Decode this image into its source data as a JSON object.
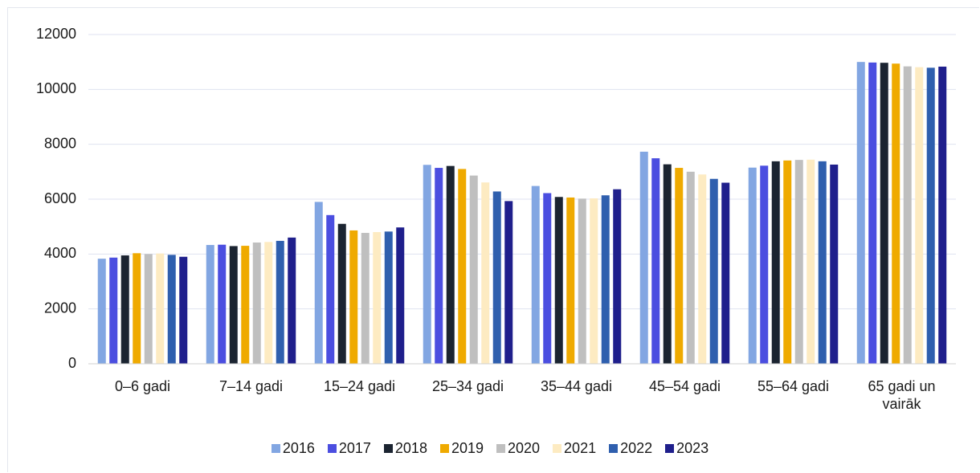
{
  "chart_data": {
    "type": "bar",
    "categories": [
      "0–6 gadi",
      "7–14 gadi",
      "15–24 gadi",
      "25–34 gadi",
      "35–44 gadi",
      "45–54 gadi",
      "55–64 gadi",
      "65 gadi un vairāk"
    ],
    "series": [
      {
        "name": "2016",
        "color": "#82a6e2",
        "values": [
          3830,
          4330,
          5900,
          7250,
          6480,
          7730,
          7150,
          11000
        ]
      },
      {
        "name": "2017",
        "color": "#4b4ee0",
        "values": [
          3870,
          4340,
          5420,
          7140,
          6220,
          7490,
          7220,
          10980
        ]
      },
      {
        "name": "2018",
        "color": "#1b2431",
        "values": [
          3950,
          4290,
          5100,
          7210,
          6080,
          7270,
          7380,
          10970
        ]
      },
      {
        "name": "2019",
        "color": "#efaa00",
        "values": [
          4030,
          4300,
          4860,
          7100,
          6060,
          7140,
          7410,
          10940
        ]
      },
      {
        "name": "2020",
        "color": "#bfbfbf",
        "values": [
          4000,
          4420,
          4770,
          6860,
          6020,
          7000,
          7430,
          10840
        ]
      },
      {
        "name": "2021",
        "color": "#fdebc2",
        "values": [
          4020,
          4440,
          4800,
          6610,
          6030,
          6900,
          7440,
          10810
        ]
      },
      {
        "name": "2022",
        "color": "#2f5fae",
        "values": [
          3970,
          4480,
          4820,
          6280,
          6140,
          6740,
          7380,
          10790
        ]
      },
      {
        "name": "2023",
        "color": "#1f1f8c",
        "values": [
          3900,
          4600,
          4970,
          5930,
          6360,
          6600,
          7260,
          10830
        ]
      }
    ],
    "ylim": [
      0,
      12000
    ],
    "yticks": [
      0,
      2000,
      4000,
      6000,
      8000,
      10000,
      12000
    ],
    "grid": true,
    "legend": "bottom"
  }
}
